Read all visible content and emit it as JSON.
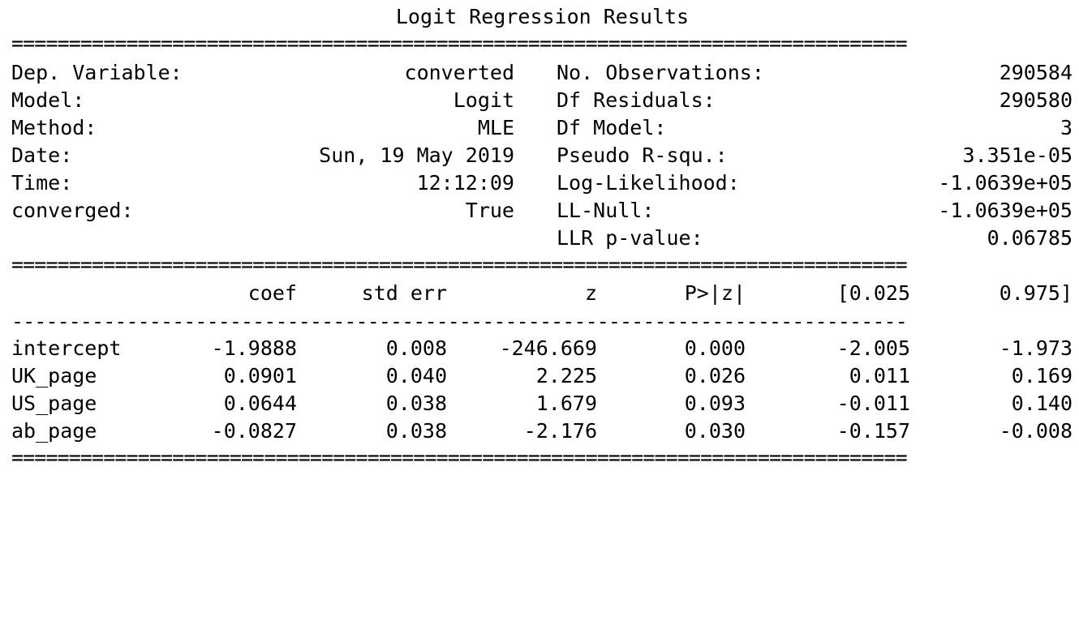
{
  "title": "Logit Regression Results",
  "rule_double": "==============================================================================",
  "rule_single": "------------------------------------------------------------------------------",
  "summary": {
    "left": [
      {
        "label": "Dep. Variable:",
        "value": "converted"
      },
      {
        "label": "Model:",
        "value": "Logit"
      },
      {
        "label": "Method:",
        "value": "MLE"
      },
      {
        "label": "Date:",
        "value": "Sun, 19 May 2019"
      },
      {
        "label": "Time:",
        "value": "12:12:09"
      },
      {
        "label": "converged:",
        "value": "True"
      }
    ],
    "right": [
      {
        "label": "No. Observations:",
        "value": "290584"
      },
      {
        "label": "Df Residuals:",
        "value": "290580"
      },
      {
        "label": "Df Model:",
        "value": "3"
      },
      {
        "label": "Pseudo R-squ.:",
        "value": "3.351e-05"
      },
      {
        "label": "Log-Likelihood:",
        "value": "-1.0639e+05"
      },
      {
        "label": "LL-Null:",
        "value": "-1.0639e+05"
      },
      {
        "label": "LLR p-value:",
        "value": "0.06785"
      }
    ]
  },
  "coef_table": {
    "headers": [
      "coef",
      "std err",
      "z",
      "P>|z|",
      "[0.025",
      "0.975]"
    ],
    "rows": [
      {
        "name": "intercept",
        "values": [
          "-1.9888",
          "0.008",
          "-246.669",
          "0.000",
          "-2.005",
          "-1.973"
        ]
      },
      {
        "name": "UK_page",
        "values": [
          "0.0901",
          "0.040",
          "2.225",
          "0.026",
          "0.011",
          "0.169"
        ]
      },
      {
        "name": "US_page",
        "values": [
          "0.0644",
          "0.038",
          "1.679",
          "0.093",
          "-0.011",
          "0.140"
        ]
      },
      {
        "name": "ab_page",
        "values": [
          "-0.0827",
          "0.038",
          "-2.176",
          "0.030",
          "-0.157",
          "-0.008"
        ]
      }
    ]
  }
}
